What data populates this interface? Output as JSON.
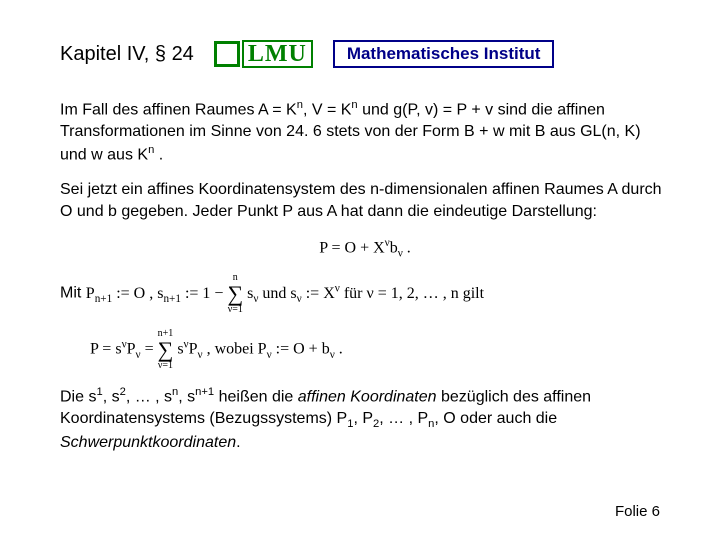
{
  "header": {
    "chapter": "Kapitel IV, § 24",
    "lmu": "LMU",
    "institute": "Mathematisches Institut"
  },
  "para1": {
    "t1": "Im Fall des affinen Raumes A = K",
    "s1": "n",
    "t2": ", V = K",
    "s2": "n",
    "t3": " und g(P, v) = P + v  sind die affinen Transformationen im Sinne von 24. 6 stets von der Form  B + w  mit  B  aus  GL(n, K)  und  w  aus  K",
    "s3": "n",
    "t4": " ."
  },
  "para2": "Sei jetzt ein affines Koordinatensystem des n-dimensionalen affinen Raumes A durch O und b gegeben. Jeder Punkt P aus A hat dann die eindeutige Darstellung:",
  "formula1": {
    "lhs": "P = O + X",
    "sup": "ν",
    "mid": "b",
    "sub": "ν",
    "end": " ."
  },
  "mitline": {
    "mit": "Mit  ",
    "p1": "P",
    "p1sub": "n+1",
    "p2": " := O ,   s",
    "p2sub": "n+1",
    "p3": " := 1 − ",
    "sum_top": "n",
    "sum_bot": "ν=1",
    "p4": " s",
    "p4sub": "ν",
    "p5": "  und  s",
    "p5sub": "ν",
    "p6": " := X",
    "p6sup": "ν",
    "p7": "  für  ν = 1, 2, … , n  gilt"
  },
  "formula2": {
    "a1": "P = s",
    "a1sup": "ν",
    "a2": "P",
    "a2sub": "ν",
    "a3": " = ",
    "sum_top": "n+1",
    "sum_bot": "ν=1",
    "a4": " s",
    "a4sup": "ν",
    "a5": "P",
    "a5sub": "ν",
    "a6": " ,   wobei  P",
    "a6sub": "ν",
    "a7": " := O + b",
    "a7sub": "ν",
    "a8": " ."
  },
  "para3": {
    "t1": "Die s",
    "s1": "1",
    "t2": ", s",
    "s2": "2",
    "t3": ", … , s",
    "s3": "n",
    "t4": ", s",
    "s4": "n+1",
    "t5": " heißen die ",
    "it1": "affinen Koordinaten",
    "t6": " bezüglich des affinen Koordinatensystems (Bezugssystems)  P",
    "p1": "1",
    "t7": ", P",
    "p2": "2",
    "t8": ", … , P",
    "p3": "n",
    "t9": ", O  oder auch die ",
    "it2": "Schwerpunktkoordinaten",
    "t10": "."
  },
  "footer": "Folie 6"
}
